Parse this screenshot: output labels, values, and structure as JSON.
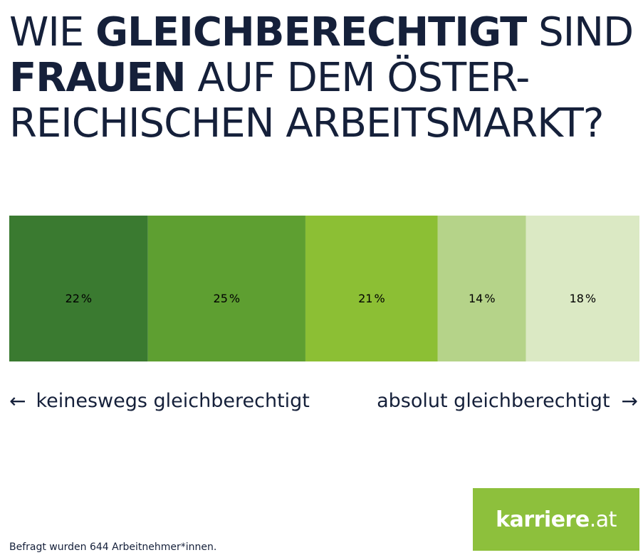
{
  "title": {
    "line1_pre": "WIE ",
    "line1_bold": "GLEICHBERECHTIGT",
    "line1_post": " SIND",
    "line2_bold": "FRAUEN",
    "line2_post": " AUF DEM ÖSTER-",
    "line3": "REICHISCHEN ARBEITSMARKT?"
  },
  "scale": {
    "left_arrow": "←",
    "left_label": "keineswegs gleichberechtigt",
    "right_label": "absolut gleichberechtigt",
    "right_arrow": "→"
  },
  "footnote": "Befragt wurden 644 Arbeitnehmer*innen.",
  "logo": {
    "bold": "karriere",
    "light": ".at",
    "color": "#8dc03c"
  },
  "chart_data": {
    "type": "bar",
    "orientation": "horizontal-stacked",
    "unit": "%",
    "categories": [
      "keineswegs gleichberechtigt",
      "",
      "",
      "",
      "absolut gleichberechtigt"
    ],
    "values": [
      22,
      25,
      21,
      14,
      18
    ],
    "colors": [
      "#3a7a30",
      "#5e9f31",
      "#8cbf34",
      "#b5d389",
      "#dbe9c4"
    ],
    "legend": "none"
  }
}
